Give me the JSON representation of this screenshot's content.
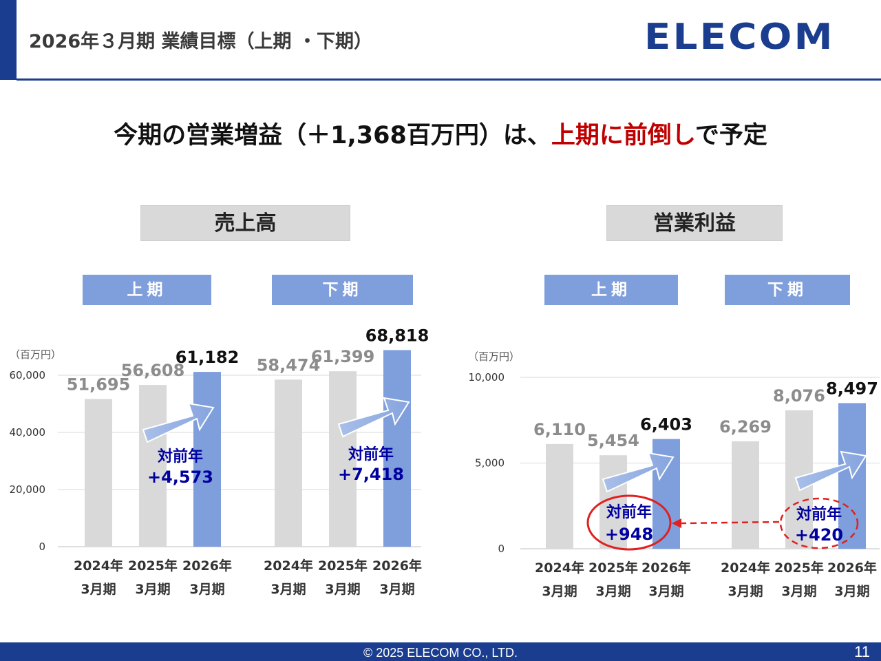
{
  "header": {
    "title": "2026年３月期 業績目標（上期 ・下期）",
    "logo": "ELECOM"
  },
  "headline": {
    "part1": "今期の営業増益（＋1,368百万円）は、",
    "highlight": "上期に前倒し",
    "part2": "で予定"
  },
  "colors": {
    "navy": "#1a3d8f",
    "bar_gray": "#d9d9d9",
    "bar_blue": "#7f9fdc",
    "red": "#c00000",
    "label_blue": "#0000a0"
  },
  "left_section": {
    "title": "売上高",
    "periods": [
      "上期",
      "下期"
    ]
  },
  "right_section": {
    "title": "営業利益",
    "periods": [
      "上期",
      "下期"
    ]
  },
  "chart_data": [
    {
      "type": "bar",
      "unit_label": "（百万円）",
      "ylim": [
        0,
        60000
      ],
      "yticks": [
        "0",
        "20,000",
        "40,000",
        "60,000"
      ],
      "groups": [
        {
          "period": "上期",
          "categories": [
            [
              "2024年",
              "3月期"
            ],
            [
              "2025年",
              "3月期"
            ],
            [
              "2026年",
              "3月期"
            ]
          ],
          "values": [
            51695,
            56608,
            61182
          ],
          "labels": [
            "51,695",
            "56,608",
            "61,182"
          ],
          "yoy": [
            "対前年",
            "+4,573"
          ]
        },
        {
          "period": "下期",
          "categories": [
            [
              "2024年",
              "3月期"
            ],
            [
              "2025年",
              "3月期"
            ],
            [
              "2026年",
              "3月期"
            ]
          ],
          "values": [
            58474,
            61399,
            68818
          ],
          "labels": [
            "58,474",
            "61,399",
            "68,818"
          ],
          "yoy": [
            "対前年",
            "+7,418"
          ]
        }
      ]
    },
    {
      "type": "bar",
      "unit_label": "（百万円）",
      "ylim": [
        0,
        10000
      ],
      "yticks": [
        "0",
        "5,000",
        "10,000"
      ],
      "groups": [
        {
          "period": "上期",
          "categories": [
            [
              "2024年",
              "3月期"
            ],
            [
              "2025年",
              "3月期"
            ],
            [
              "2026年",
              "3月期"
            ]
          ],
          "values": [
            6110,
            5454,
            6403
          ],
          "labels": [
            "6,110",
            "5,454",
            "6,403"
          ],
          "yoy": [
            "対前年",
            "+948"
          ]
        },
        {
          "period": "下期",
          "categories": [
            [
              "2024年",
              "3月期"
            ],
            [
              "2025年",
              "3月期"
            ],
            [
              "2026年",
              "3月期"
            ]
          ],
          "values": [
            6269,
            8076,
            8497
          ],
          "labels": [
            "6,269",
            "8,076",
            "8,497"
          ],
          "yoy": [
            "対前年",
            "+420"
          ]
        }
      ]
    }
  ],
  "footer": {
    "copyright": "© 2025 ELECOM CO., LTD.",
    "page_number": "11"
  }
}
